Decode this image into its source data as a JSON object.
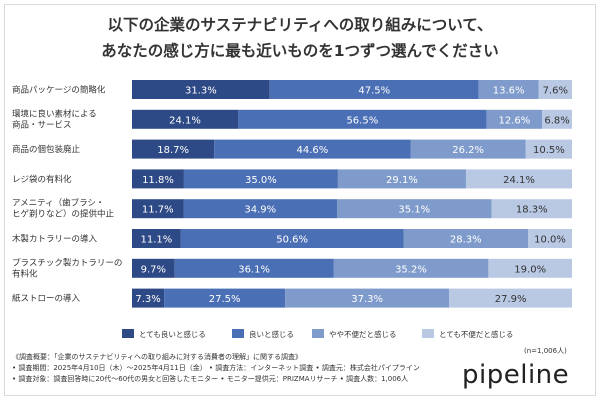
{
  "title_line1": "以下の企業のサステナビリティへの取り組みについて、",
  "title_line2": "あなたの感じ方に最も近いものを1つずつ選んでください",
  "chart_data": {
    "type": "bar",
    "orientation": "horizontal",
    "stacked": true,
    "percent": true,
    "categories": [
      [
        "商品パッケージの簡略化"
      ],
      [
        "環境に良い素材による",
        "商品・サービス"
      ],
      [
        "商品の個包装廃止"
      ],
      [
        "レジ袋の有料化"
      ],
      [
        "アメニティ（歯ブラシ・",
        "ヒゲ剃りなど）の提供中止"
      ],
      [
        "木製カトラリーの導入"
      ],
      [
        "プラスチック製カトラリーの",
        "有料化"
      ],
      [
        "紙ストローの導入"
      ]
    ],
    "series": [
      {
        "name": "とても良いと感じる",
        "color": "#2e4a86",
        "values": [
          31.3,
          24.1,
          18.7,
          11.8,
          11.7,
          11.1,
          9.7,
          7.3
        ]
      },
      {
        "name": "良いと感じる",
        "color": "#4b6fb5",
        "values": [
          47.5,
          56.5,
          44.6,
          35.0,
          34.9,
          50.6,
          36.1,
          27.5
        ]
      },
      {
        "name": "やや不便だと感じる",
        "color": "#7f9bcb",
        "values": [
          13.6,
          12.6,
          26.2,
          29.1,
          35.1,
          28.3,
          35.2,
          37.3
        ]
      },
      {
        "name": "とても不便だと感じる",
        "color": "#b9c9e4",
        "values": [
          7.6,
          6.8,
          10.5,
          24.1,
          18.3,
          10.0,
          19.0,
          27.9
        ]
      }
    ],
    "value_labels": [
      [
        "31.3%",
        "47.5%",
        "13.6%",
        "7.6%"
      ],
      [
        "24.1%",
        "56.5%",
        "12.6%",
        "6.8%"
      ],
      [
        "18.7%",
        "44.6%",
        "26.2%",
        "10.5%"
      ],
      [
        "11.8%",
        "35.0%",
        "29.1%",
        "24.1%"
      ],
      [
        "11.7%",
        "34.9%",
        "35.1%",
        "18.3%"
      ],
      [
        "11.1%",
        "50.6%",
        "28.3%",
        "10.0%"
      ],
      [
        "9.7%",
        "36.1%",
        "35.2%",
        "19.0%"
      ],
      [
        "7.3%",
        "27.5%",
        "37.3%",
        "27.9%"
      ]
    ],
    "xlim": [
      0,
      100
    ],
    "legend_position": "bottom"
  },
  "sample_size": "(n=1,006人)",
  "footnotes": [
    "《調査概要：「企業のサステナビリティへの取り組みに対する消費者の理解」に関する調査》",
    "• 調査期間：2025年4月10日（木）〜2025年4月11日（金） • 調査方法：インターネット調査 • 調査元：株式会社パイプライン",
    "• 調査対象：調査回答時に20代〜60代の男女と回答したモニター • モニター提供元：PRIZMAリサーチ • 調査人数：1,006人"
  ],
  "brand": "pipeline"
}
